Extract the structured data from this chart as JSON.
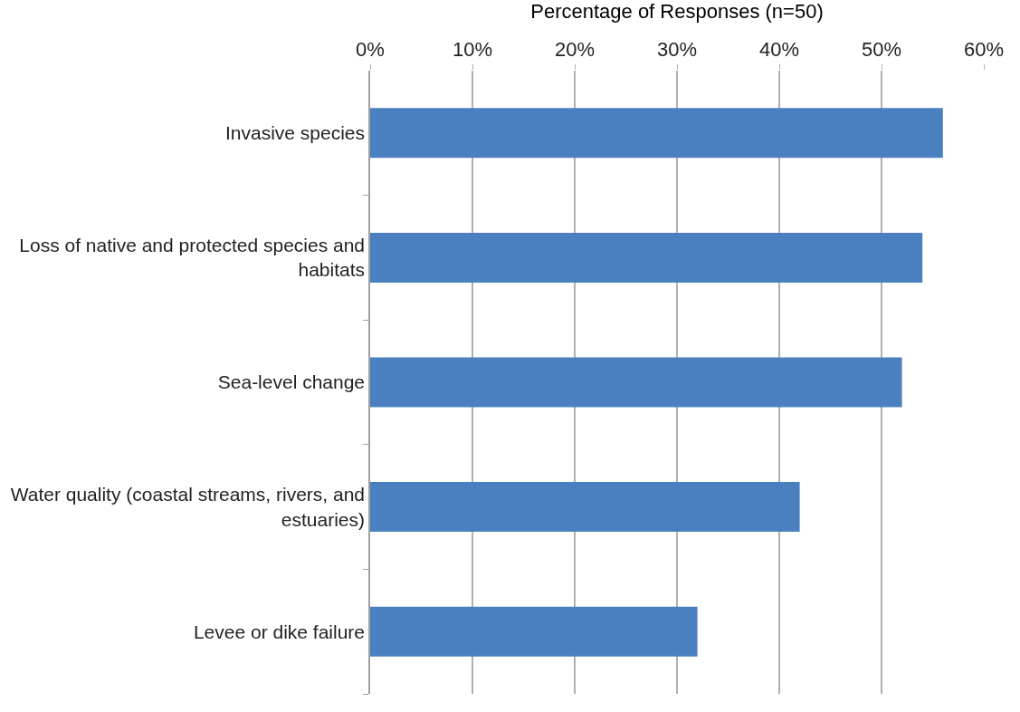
{
  "chart_data": {
    "type": "bar",
    "orientation": "horizontal",
    "xlabel": "Percentage of Responses (n=50)",
    "categories": [
      "Invasive species",
      "Loss of native and protected species and habitats",
      "Sea-level change",
      "Water quality (coastal streams, rivers, and estuaries)",
      "Levee or dike failure"
    ],
    "values": [
      56,
      54,
      52,
      42,
      32
    ],
    "color": "#4a80c0",
    "xlim": [
      0,
      60
    ],
    "xticks": [
      {
        "value": 0,
        "label": "0%"
      },
      {
        "value": 10,
        "label": "10%"
      },
      {
        "value": 20,
        "label": "20%"
      },
      {
        "value": 30,
        "label": "30%"
      },
      {
        "value": 40,
        "label": "40%"
      },
      {
        "value": 50,
        "label": "50%"
      },
      {
        "value": 60,
        "label": "60%"
      }
    ],
    "grid": "x"
  }
}
